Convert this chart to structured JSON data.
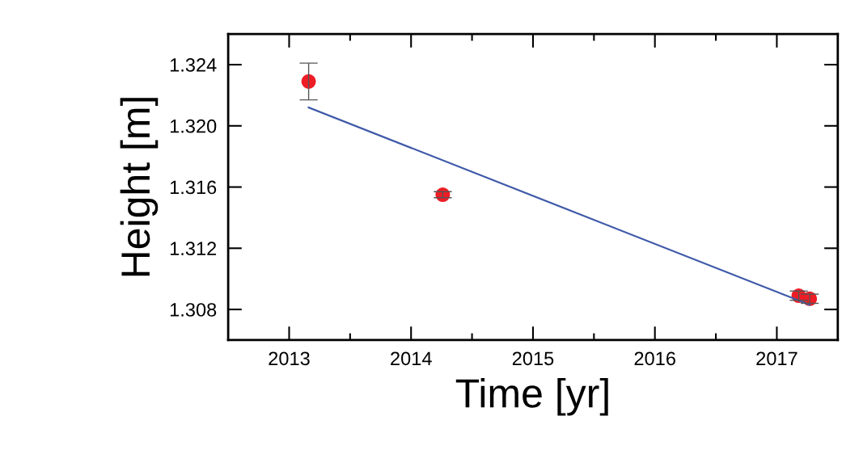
{
  "chart_data": {
    "type": "scatter",
    "xlabel": "Time [yr]",
    "ylabel": "Height [m]",
    "series": [
      {
        "color": "#ee1c25",
        "x": [
          2013.16,
          2014.26,
          2017.18,
          2017.27
        ],
        "values": [
          1.3229,
          1.3155,
          1.3089,
          1.3087
        ],
        "errors": [
          0.0012,
          0.0002,
          0.0003,
          0.0003
        ],
        "marker": "circle"
      },
      {
        "type": "line",
        "color": "#3f5aa8",
        "x": [
          2013.16,
          2017.27
        ],
        "values": [
          1.3212,
          1.3083
        ],
        "line_style": "solid"
      }
    ],
    "xlim": [
      2012.5,
      2017.5
    ],
    "ylim": [
      1.306,
      1.326
    ],
    "xticks": [
      2013,
      {
        "value": 2013.5,
        "label": null
      },
      2014,
      {
        "value": 2014.5,
        "label": null
      },
      2015,
      {
        "value": 2015.5,
        "label": null
      },
      2016,
      {
        "value": 2016.5,
        "label": null
      },
      2017
    ],
    "yticks": [
      {
        "value": 1.308,
        "label": "1.308"
      },
      {
        "value": 1.312,
        "label": "1.312"
      },
      {
        "value": 1.316,
        "label": "1.316"
      },
      {
        "value": 1.32,
        "label": "1.320"
      },
      {
        "value": 1.324,
        "label": "1.324"
      }
    ],
    "grid": false,
    "legend": false
  }
}
